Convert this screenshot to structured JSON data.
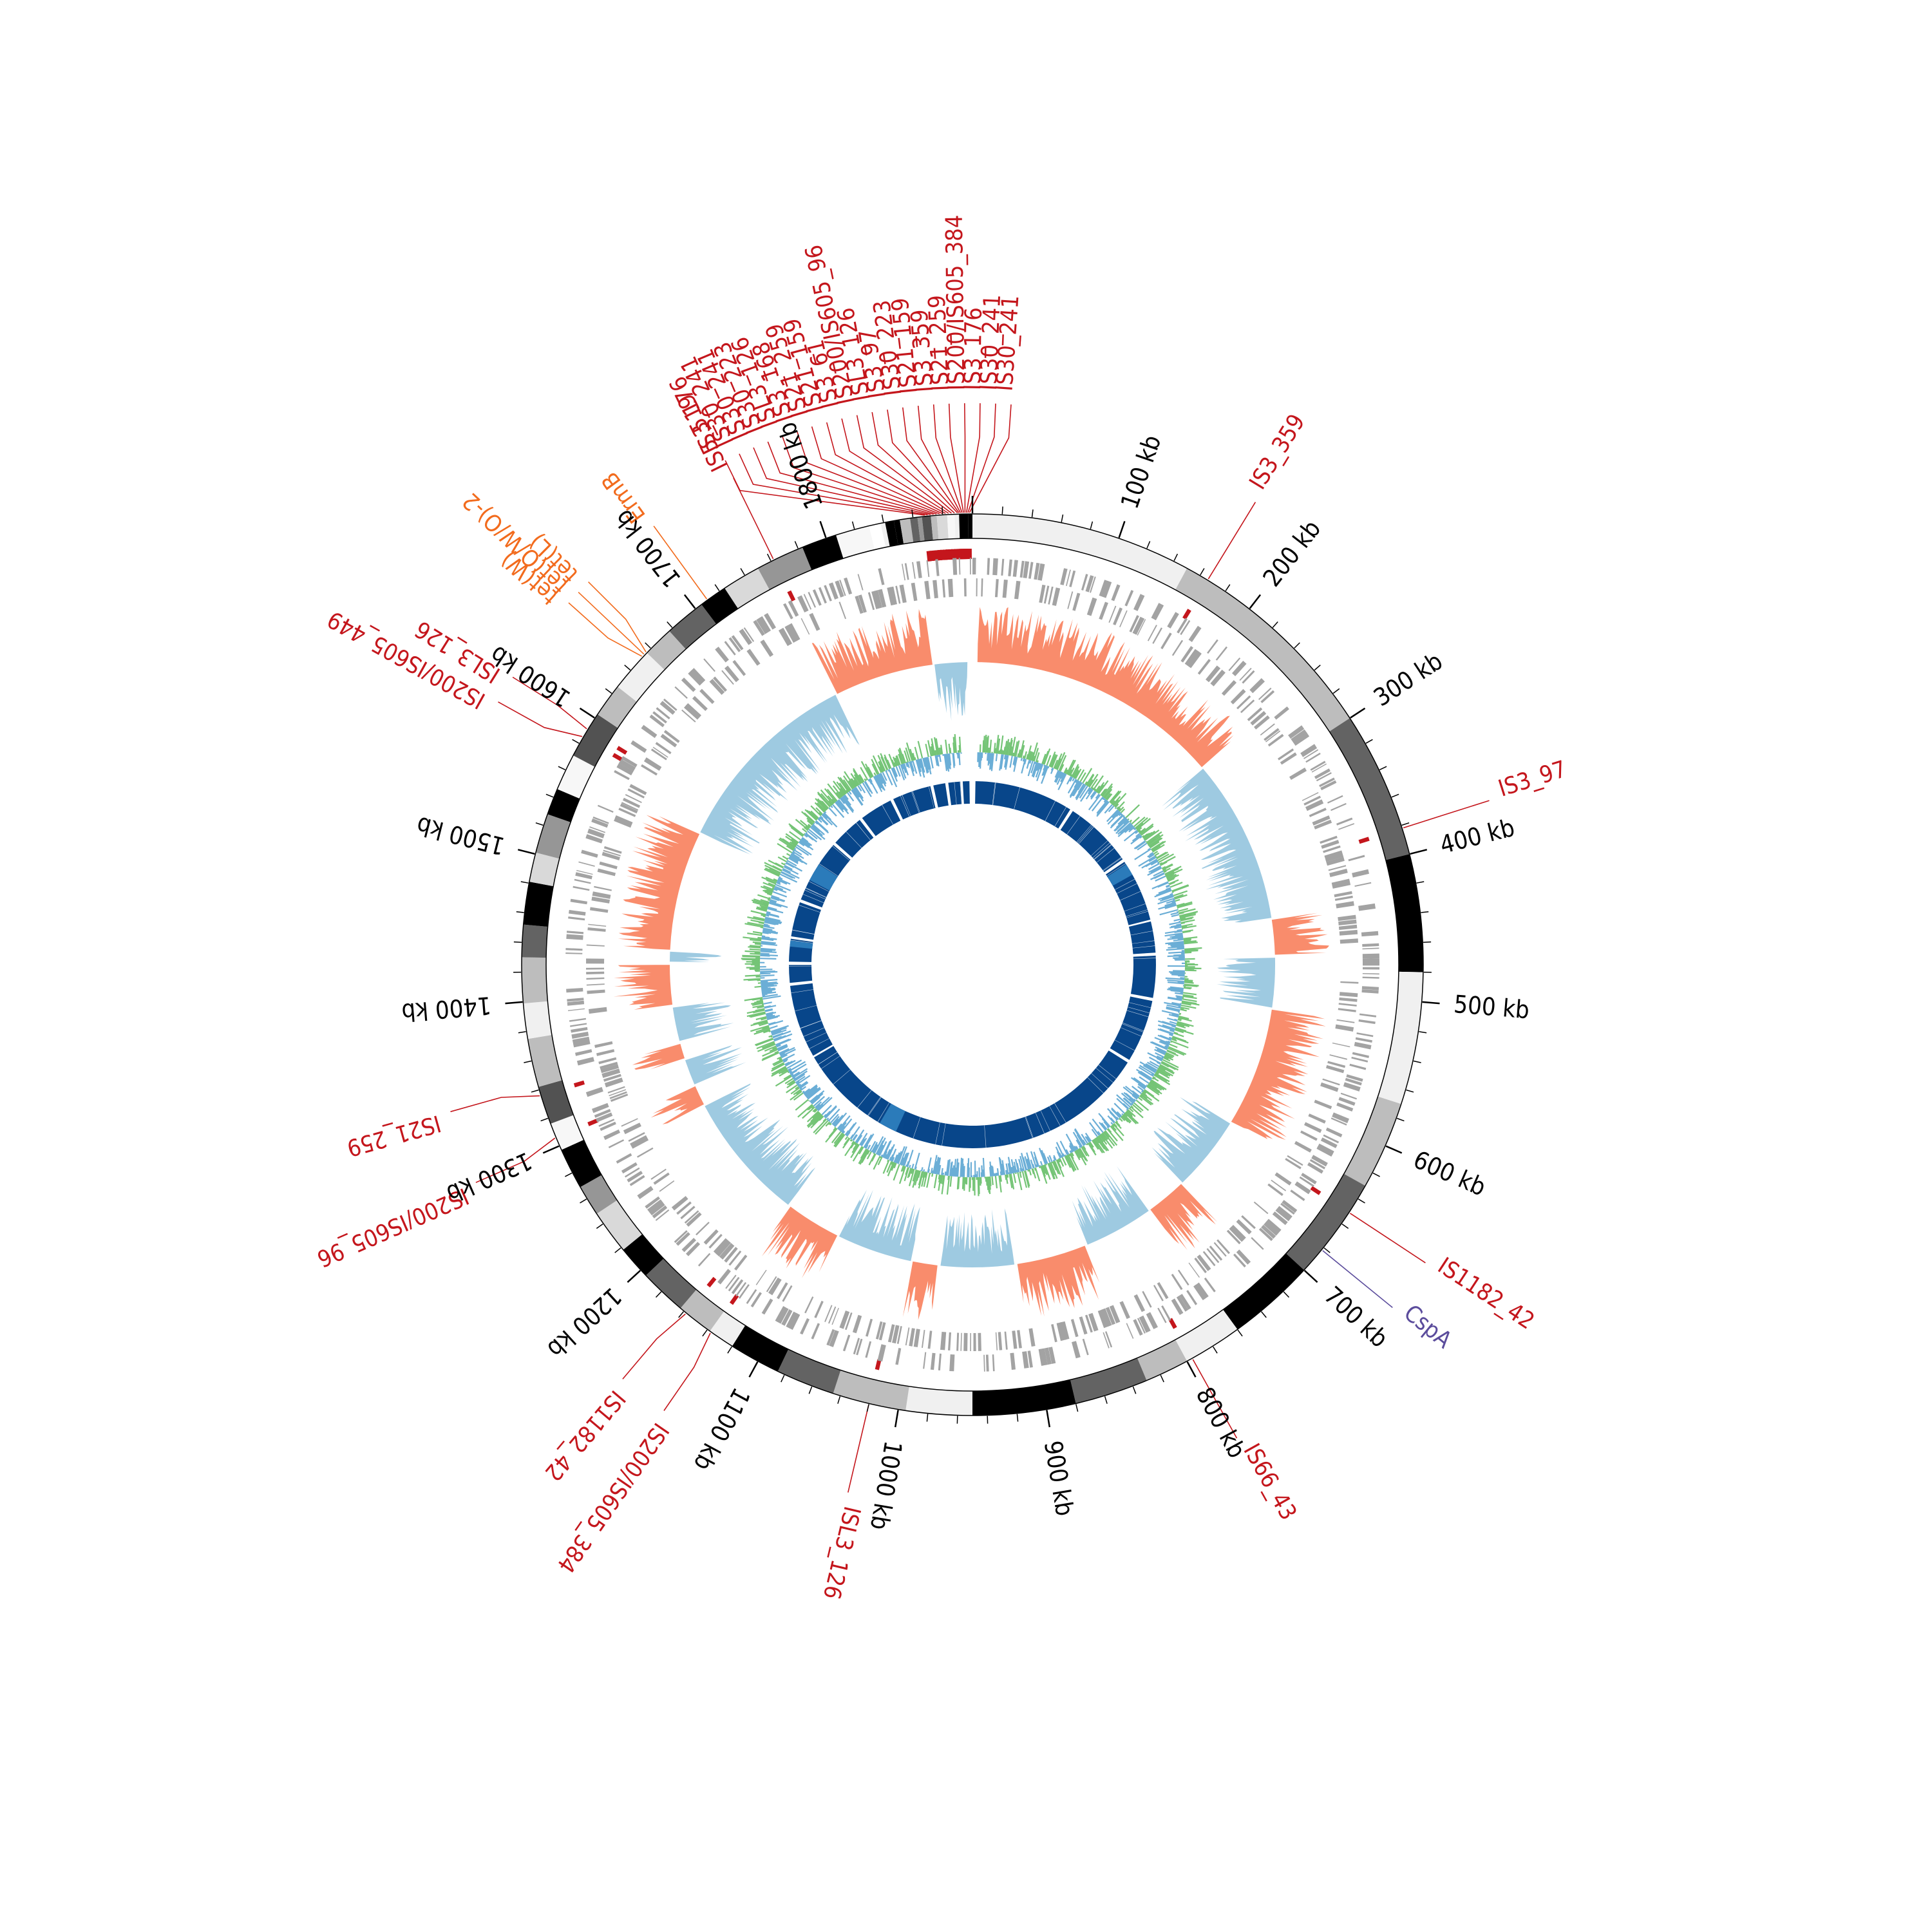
{
  "genome": {
    "total_kb": 1900
  },
  "colors": {
    "insertion_sequence": "#c4161c",
    "resistance_gene": "#f26b1d",
    "cold_shock_gene": "#5b4c9c",
    "gene_track": "#a3a3a3",
    "gc_skew_positive": "#f98c6c",
    "gc_skew_negative": "#9ecae1",
    "gc_content_positive": "#74c476",
    "gc_content_negative": "#6baed6",
    "similarity_ring": "#08468a",
    "similarity_ring_light": "#2b7bba"
  },
  "ticks": [
    {
      "pos": 100,
      "label": "100 kb"
    },
    {
      "pos": 200,
      "label": "200 kb"
    },
    {
      "pos": 300,
      "label": "300 kb"
    },
    {
      "pos": 400,
      "label": "400 kb"
    },
    {
      "pos": 500,
      "label": "500 kb"
    },
    {
      "pos": 600,
      "label": "600 kb"
    },
    {
      "pos": 700,
      "label": "700 kb"
    },
    {
      "pos": 800,
      "label": "800 kb"
    },
    {
      "pos": 900,
      "label": "900 kb"
    },
    {
      "pos": 1000,
      "label": "1000 kb"
    },
    {
      "pos": 1100,
      "label": "1100 kb"
    },
    {
      "pos": 1200,
      "label": "1200 kb"
    },
    {
      "pos": 1300,
      "label": "1300 kb"
    },
    {
      "pos": 1400,
      "label": "1400 kb"
    },
    {
      "pos": 1500,
      "label": "1500 kb"
    },
    {
      "pos": 1600,
      "label": "1600 kb"
    },
    {
      "pos": 1700,
      "label": "1700 kb"
    },
    {
      "pos": 1800,
      "label": "1800 kb"
    }
  ],
  "labels": [
    {
      "text": "IS3_359",
      "pos": 166,
      "kind": "insertion_sequence"
    },
    {
      "text": "IS3_97",
      "pos": 382,
      "kind": "insertion_sequence"
    },
    {
      "text": "IS1182_42",
      "pos": 651,
      "kind": "insertion_sequence"
    },
    {
      "text": "CspA",
      "pos": 682,
      "kind": "cold_shock_gene"
    },
    {
      "text": "IS66_43",
      "pos": 796,
      "kind": "insertion_sequence"
    },
    {
      "text": "ISL3_126",
      "pos": 1020,
      "kind": "insertion_sequence"
    },
    {
      "text": "IS200/IS605_384",
      "pos": 1137,
      "kind": "insertion_sequence"
    },
    {
      "text": "IS1182_42",
      "pos": 1158,
      "kind": "insertion_sequence"
    },
    {
      "text": "IS200/IS605_96",
      "pos": 1306,
      "kind": "insertion_sequence"
    },
    {
      "text": "IS21_259",
      "pos": 1336,
      "kind": "insertion_sequence"
    },
    {
      "text": "IS200/IS605_449",
      "pos": 1585,
      "kind": "insertion_sequence"
    },
    {
      "text": "ISL3_126",
      "pos": 1591,
      "kind": "insertion_sequence"
    },
    {
      "text": "tet(W)",
      "pos": 1652,
      "kind": "resistance_gene"
    },
    {
      "text": "tet(O/W/O)-2",
      "pos": 1654,
      "kind": "resistance_gene"
    },
    {
      "text": "tet(L)",
      "pos": 1656,
      "kind": "resistance_gene"
    },
    {
      "text": "ErmB",
      "pos": 1710,
      "kind": "resistance_gene"
    },
    {
      "text": "IS5_519",
      "pos": 1762,
      "kind": "insertion_sequence"
    },
    {
      "text": "IS3_176",
      "pos": 1868,
      "kind": "insertion_sequence"
    },
    {
      "text": "IS30_241",
      "pos": 1870,
      "kind": "insertion_sequence"
    },
    {
      "text": "IS30_241",
      "pos": 1872,
      "kind": "insertion_sequence"
    },
    {
      "text": "IS30_223",
      "pos": 1874,
      "kind": "insertion_sequence"
    },
    {
      "text": "ISL3_126",
      "pos": 1876,
      "kind": "insertion_sequence"
    },
    {
      "text": "IS3_168",
      "pos": 1878,
      "kind": "insertion_sequence"
    },
    {
      "text": "IS21_259",
      "pos": 1880,
      "kind": "insertion_sequence"
    },
    {
      "text": "IS21_159",
      "pos": 1882,
      "kind": "insertion_sequence"
    },
    {
      "text": "IS3_61",
      "pos": 1884,
      "kind": "insertion_sequence"
    },
    {
      "text": "IS200/IS605_96",
      "pos": 1886,
      "kind": "insertion_sequence"
    },
    {
      "text": "ISL3_126",
      "pos": 1888,
      "kind": "insertion_sequence"
    },
    {
      "text": "IS3_97",
      "pos": 1890,
      "kind": "insertion_sequence"
    },
    {
      "text": "IS30_223",
      "pos": 1891,
      "kind": "insertion_sequence"
    },
    {
      "text": "IS21_159",
      "pos": 1892,
      "kind": "insertion_sequence"
    },
    {
      "text": "IS3_359",
      "pos": 1893,
      "kind": "insertion_sequence"
    },
    {
      "text": "IS21_259",
      "pos": 1894,
      "kind": "insertion_sequence"
    },
    {
      "text": "IS200/IS605_384",
      "pos": 1895,
      "kind": "insertion_sequence"
    },
    {
      "text": "IS3_176",
      "pos": 1896,
      "kind": "insertion_sequence"
    },
    {
      "text": "IS30_241",
      "pos": 1897,
      "kind": "insertion_sequence"
    },
    {
      "text": "IS30_241",
      "pos": 1898,
      "kind": "insertion_sequence"
    }
  ]
}
